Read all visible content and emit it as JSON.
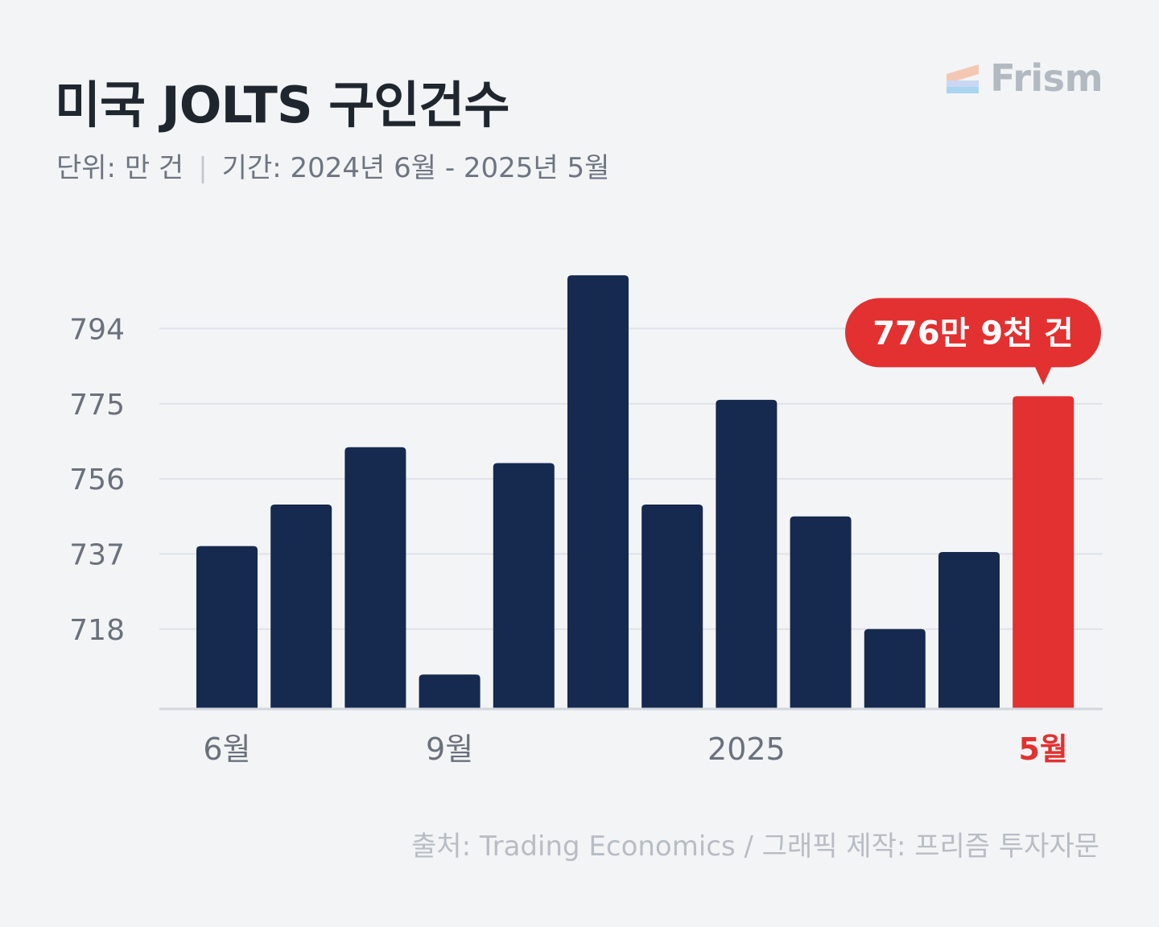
{
  "header": {
    "title": "미국 JOLTS 구인건수",
    "unit": "단위: 만 건",
    "separator": "|",
    "period": "기간: 2024년 6월 - 2025년 5월"
  },
  "brand": {
    "name": "Frism",
    "colors": [
      "#f4c7b3",
      "#c9d8f2",
      "#a9d4ef"
    ]
  },
  "colors": {
    "bar": "#16294e",
    "highlight": "#e33030",
    "grid": "#dfe2e7",
    "axis": "#d3d6dd",
    "tick_text": "#6b717b",
    "callout_text": "#ffffff"
  },
  "chart_data": {
    "type": "bar",
    "categories": [
      "2024-06",
      "2024-07",
      "2024-08",
      "2024-09",
      "2024-10",
      "2024-11",
      "2024-12",
      "2025-01",
      "2025-02",
      "2025-03",
      "2025-04",
      "2025-05"
    ],
    "values": [
      739,
      749.5,
      764,
      706.5,
      760,
      807.5,
      749.5,
      776,
      746.5,
      718,
      737.5,
      776.9
    ],
    "ylim": [
      698,
      812
    ],
    "y_ticks": [
      718,
      737,
      756,
      775,
      794
    ],
    "x_tick_labels": [
      {
        "index": 0,
        "label": "6월"
      },
      {
        "index": 3,
        "label": "9월"
      },
      {
        "index": 7,
        "label": "2025"
      },
      {
        "index": 11,
        "label": "5월",
        "highlight": true
      }
    ],
    "highlight_index": 11,
    "callout": "776만 9천 건",
    "grid": true,
    "xlabel": "",
    "ylabel": ""
  },
  "footer": {
    "source": "출처: Trading Economics  / 그래픽 제작: 프리즘 투자자문"
  }
}
